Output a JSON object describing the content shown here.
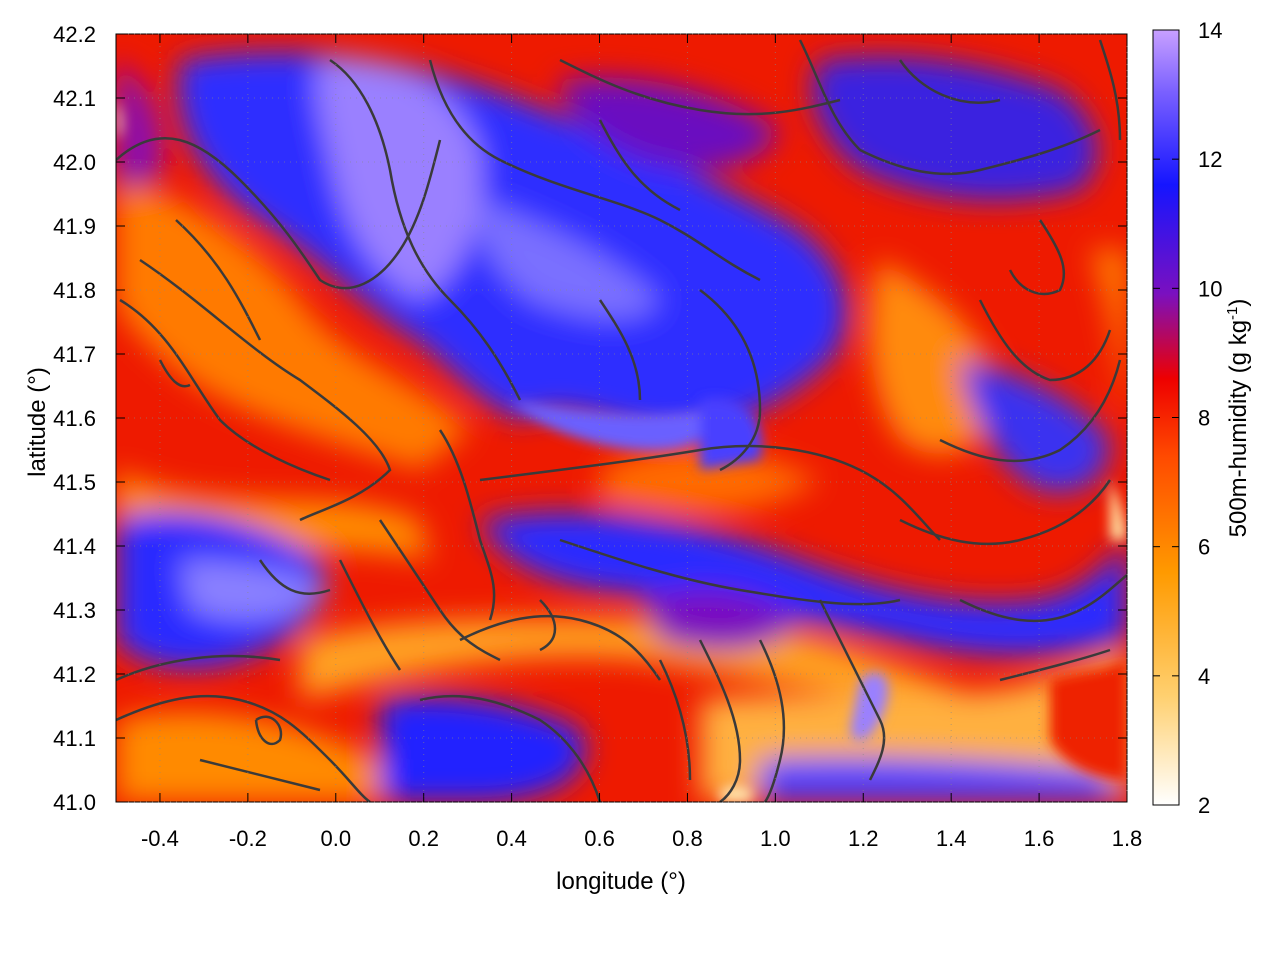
{
  "chart_data": {
    "type": "heatmap",
    "xlabel": "longitude (°)",
    "ylabel": "latitude (°)",
    "colorbar_label": "500m-humidity (g kg",
    "colorbar_label_sup": "-1",
    "colorbar_label_close": ")",
    "xlim": [
      -0.5,
      1.8
    ],
    "ylim": [
      41.0,
      42.2
    ],
    "x_ticks": [
      "-0.4",
      "-0.2",
      "0.0",
      "0.2",
      "0.4",
      "0.6",
      "0.8",
      "1.0",
      "1.2",
      "1.4",
      "1.6",
      "1.8"
    ],
    "x_tick_values": [
      -0.4,
      -0.2,
      0.0,
      0.2,
      0.4,
      0.6,
      0.8,
      1.0,
      1.2,
      1.4,
      1.6,
      1.8
    ],
    "y_ticks": [
      "41.0",
      "41.1",
      "41.2",
      "41.3",
      "41.4",
      "41.5",
      "41.6",
      "41.7",
      "41.8",
      "41.9",
      "42.0",
      "42.1",
      "42.2"
    ],
    "y_tick_values": [
      41.0,
      41.1,
      41.2,
      41.3,
      41.4,
      41.5,
      41.6,
      41.7,
      41.8,
      41.9,
      42.0,
      42.1,
      42.2
    ],
    "colorbar_ticks": [
      "2",
      "4",
      "6",
      "8",
      "10",
      "12",
      "14"
    ],
    "colorbar_tick_values": [
      2,
      4,
      6,
      8,
      10,
      12,
      14
    ],
    "color_range": [
      2,
      14
    ],
    "colormap": [
      "#ffffff",
      "#ffd070",
      "#ff9a00",
      "#ff4a00",
      "#ee0000",
      "#7a10c0",
      "#1515ff",
      "#7a60ff",
      "#c8a0ff"
    ],
    "contour_color": "#3a3a3a",
    "grid": true
  }
}
